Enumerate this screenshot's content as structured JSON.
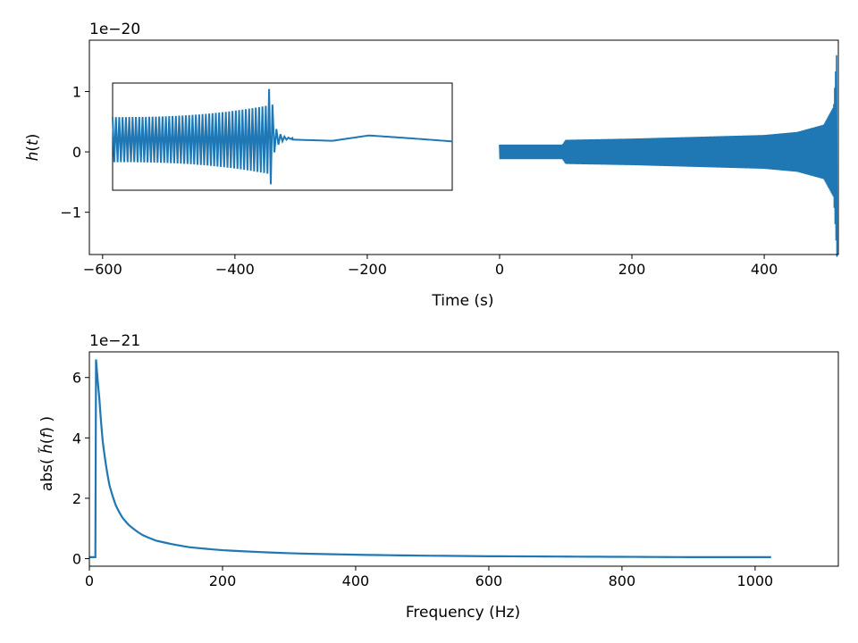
{
  "chart_data": [
    {
      "type": "line",
      "title": "",
      "xlabel": "Time (s)",
      "ylabel": "h(t)",
      "y_offset_label": "1e−20",
      "xlim": [
        -620,
        512
      ],
      "ylim": [
        -1.7,
        1.85
      ],
      "x_ticks": [
        -600,
        -400,
        -200,
        0,
        200,
        400
      ],
      "x_tick_labels": [
        "−600",
        "−400",
        "−200",
        "0",
        "200",
        "400"
      ],
      "y_ticks": [
        -1,
        0,
        1
      ],
      "y_tick_labels": [
        "−1",
        "0",
        "1"
      ],
      "grid": false,
      "legend": "none",
      "color": "#1f77b4",
      "series": [
        {
          "segment_start_s": 0,
          "segment_end_s": 510,
          "envelope": [
            {
              "t": 0,
              "amp": 0.12
            },
            {
              "t": 95,
              "amp": 0.12
            },
            {
              "t": 100,
              "amp": 0.2
            },
            {
              "t": 200,
              "amp": 0.22
            },
            {
              "t": 300,
              "amp": 0.25
            },
            {
              "t": 400,
              "amp": 0.28
            },
            {
              "t": 450,
              "amp": 0.33
            },
            {
              "t": 490,
              "amp": 0.45
            },
            {
              "t": 505,
              "amp": 0.75
            },
            {
              "t": 510,
              "amp": 1.75
            }
          ]
        }
      ],
      "inset": {
        "description_text": "",
        "xlim": [
          -580,
          -70
        ],
        "ylim": [
          -0.65,
          1.15
        ],
        "oscillation_end_t": -340,
        "final_dip": -0.55,
        "final_spike": 1.05,
        "ringdown_end_t": -310,
        "slow_wave": [
          {
            "t": -310,
            "v": 0.2
          },
          {
            "t": -250,
            "v": 0.18
          },
          {
            "t": -195,
            "v": 0.27
          },
          {
            "t": -130,
            "v": 0.22
          },
          {
            "t": -70,
            "v": 0.17
          }
        ],
        "initial_amp": 0.42,
        "initial_center": 0.2
      }
    },
    {
      "type": "line",
      "title": "",
      "xlabel": "Frequency (Hz)",
      "ylabel": "abs( h̃(f) )",
      "y_offset_label": "1e−21",
      "xlim": [
        0,
        1125
      ],
      "ylim": [
        -0.25,
        6.85
      ],
      "x_ticks": [
        0,
        200,
        400,
        600,
        800,
        1000
      ],
      "x_tick_labels": [
        "0",
        "200",
        "400",
        "600",
        "800",
        "1000"
      ],
      "y_ticks": [
        0,
        2,
        4,
        6
      ],
      "y_tick_labels": [
        "0",
        "2",
        "4",
        "6"
      ],
      "grid": false,
      "legend": "none",
      "color": "#1f77b4",
      "series": [
        {
          "x": [
            0,
            9,
            10,
            15,
            20,
            30,
            40,
            50,
            60,
            80,
            100,
            150,
            200,
            300,
            400,
            500,
            600,
            700,
            800,
            900,
            1024
          ],
          "y": [
            0.05,
            0.05,
            6.6,
            5.3,
            3.9,
            2.45,
            1.75,
            1.35,
            1.1,
            0.78,
            0.6,
            0.38,
            0.28,
            0.18,
            0.13,
            0.1,
            0.08,
            0.07,
            0.06,
            0.05,
            0.05
          ]
        }
      ]
    }
  ]
}
